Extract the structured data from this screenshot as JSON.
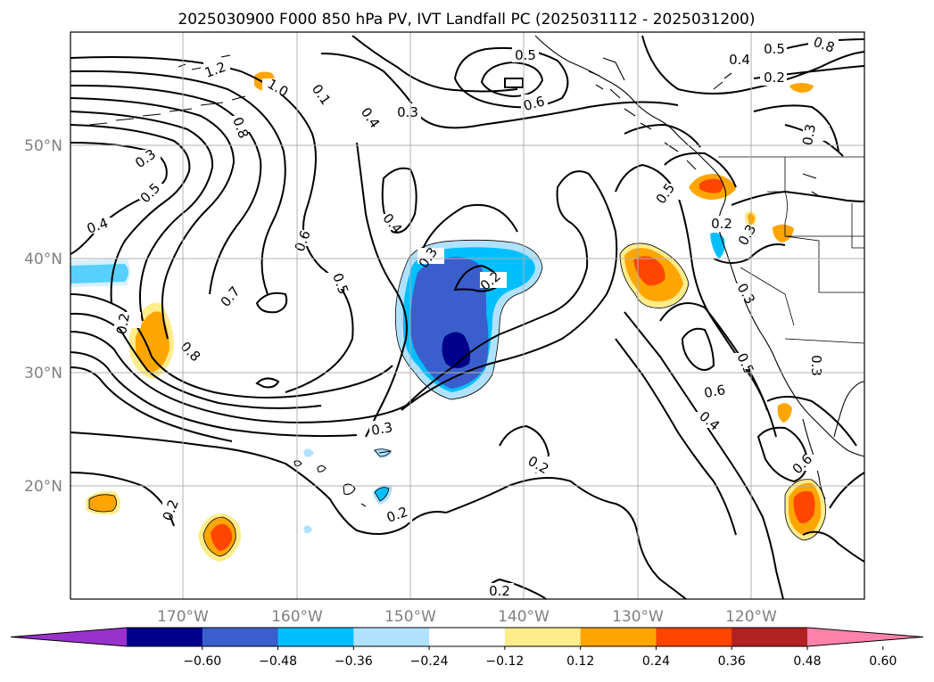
{
  "title": "2025030900 F000 850 hPa PV, IVT Landfall PC (2025031112 - 2025031200)",
  "lat_labels": [
    "50°N",
    "40°N",
    "30°N",
    "20°N"
  ],
  "lon_labels": [
    "170°W",
    "160°W",
    "150°W",
    "140°W",
    "130°W",
    "120°W"
  ],
  "colorbar": {
    "tick_labels": [
      "−0.60",
      "−0.48",
      "−0.36",
      "−0.24",
      "−0.12",
      "0.12",
      "0.24",
      "0.36",
      "0.48",
      "0.60"
    ],
    "colors": [
      "#9932cc",
      "#00008b",
      "#3a5fcd",
      "#00bfff",
      "#b0e2ff",
      "#ffffff",
      "#ffec8b",
      "#ffa500",
      "#ff4500",
      "#b22222",
      "#ff82ab"
    ]
  },
  "contour_labels": [
    {
      "text": "1.2"
    },
    {
      "text": "1.0"
    },
    {
      "text": "0.1"
    },
    {
      "text": "0.8"
    },
    {
      "text": "0.4"
    },
    {
      "text": "0.3"
    },
    {
      "text": "0.5"
    },
    {
      "text": "0.6"
    },
    {
      "text": "0.3"
    },
    {
      "text": "0.5"
    },
    {
      "text": "0.4"
    },
    {
      "text": "0.4"
    },
    {
      "text": "0.6"
    },
    {
      "text": "0.5"
    },
    {
      "text": "0.7"
    },
    {
      "text": "0.2"
    },
    {
      "text": "0.8"
    },
    {
      "text": "0.3"
    },
    {
      "text": "0.2"
    },
    {
      "text": "0.3"
    },
    {
      "text": "0.2"
    },
    {
      "text": "0.2"
    },
    {
      "text": "0.2"
    },
    {
      "text": "0.5"
    },
    {
      "text": "0.2"
    },
    {
      "text": "0.3"
    },
    {
      "text": "0.3"
    },
    {
      "text": "0.5"
    },
    {
      "text": "0.6"
    },
    {
      "text": "0.4"
    },
    {
      "text": "0.6"
    },
    {
      "text": "0.2"
    },
    {
      "text": "0.5"
    },
    {
      "text": "0.4"
    },
    {
      "text": "0.3"
    },
    {
      "text": "0.2"
    },
    {
      "text": "0.3"
    },
    {
      "text": "0.8"
    }
  ]
}
